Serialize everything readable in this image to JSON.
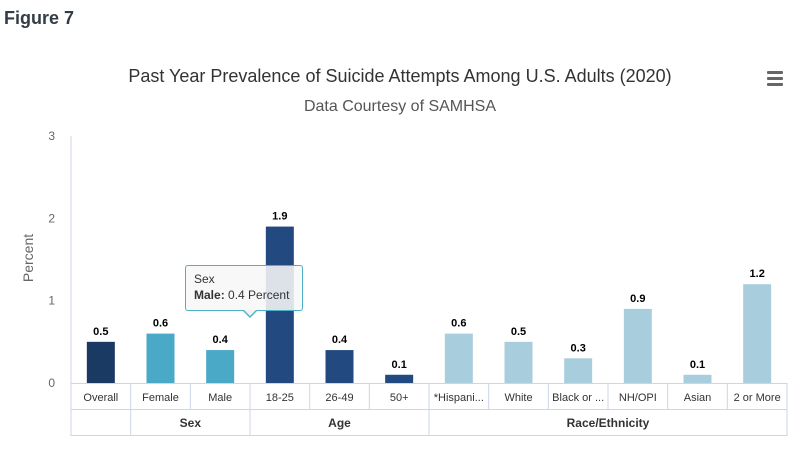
{
  "figure_label": "Figure 7",
  "menu_icon": "hamburger-menu-icon",
  "tooltip": {
    "group": "Sex",
    "category": "Male",
    "separator": ":",
    "value_text": "0.4 Percent",
    "border_color": "#4db0c9"
  },
  "chart_data": {
    "type": "bar",
    "title": "Past Year Prevalence of Suicide Attempts Among U.S. Adults (2020)",
    "subtitle": "Data Courtesy of SAMHSA",
    "ylabel": "Percent",
    "xlabel": "",
    "ylim": [
      0,
      3
    ],
    "yticks": [
      "0",
      "1",
      "2",
      "3"
    ],
    "grid": false,
    "legend": "none",
    "categories": [
      "Overall",
      "Female",
      "Male",
      "18-25",
      "26-49",
      "50+",
      "*Hispani...",
      "White",
      "Black or ...",
      "NH/OPI",
      "Asian",
      "2 or More"
    ],
    "values": [
      0.5,
      0.6,
      0.4,
      1.9,
      0.4,
      0.1,
      0.6,
      0.5,
      0.3,
      0.9,
      0.1,
      1.2
    ],
    "data_labels": [
      "0.5",
      "0.6",
      "0.4",
      "1.9",
      "0.4",
      "0.1",
      "0.6",
      "0.5",
      "0.3",
      "0.9",
      "0.1",
      "1.2"
    ],
    "bar_colors": [
      "#1b3a63",
      "#4aa9c6",
      "#4aa9c6",
      "#234a80",
      "#234a80",
      "#234a80",
      "#a8cede",
      "#a8cede",
      "#a8cede",
      "#a8cede",
      "#a8cede",
      "#a8cede"
    ],
    "groups": [
      {
        "label": "",
        "count": 1
      },
      {
        "label": "Sex",
        "count": 2
      },
      {
        "label": "Age",
        "count": 3
      },
      {
        "label": "Race/Ethnicity",
        "count": 6
      }
    ]
  }
}
